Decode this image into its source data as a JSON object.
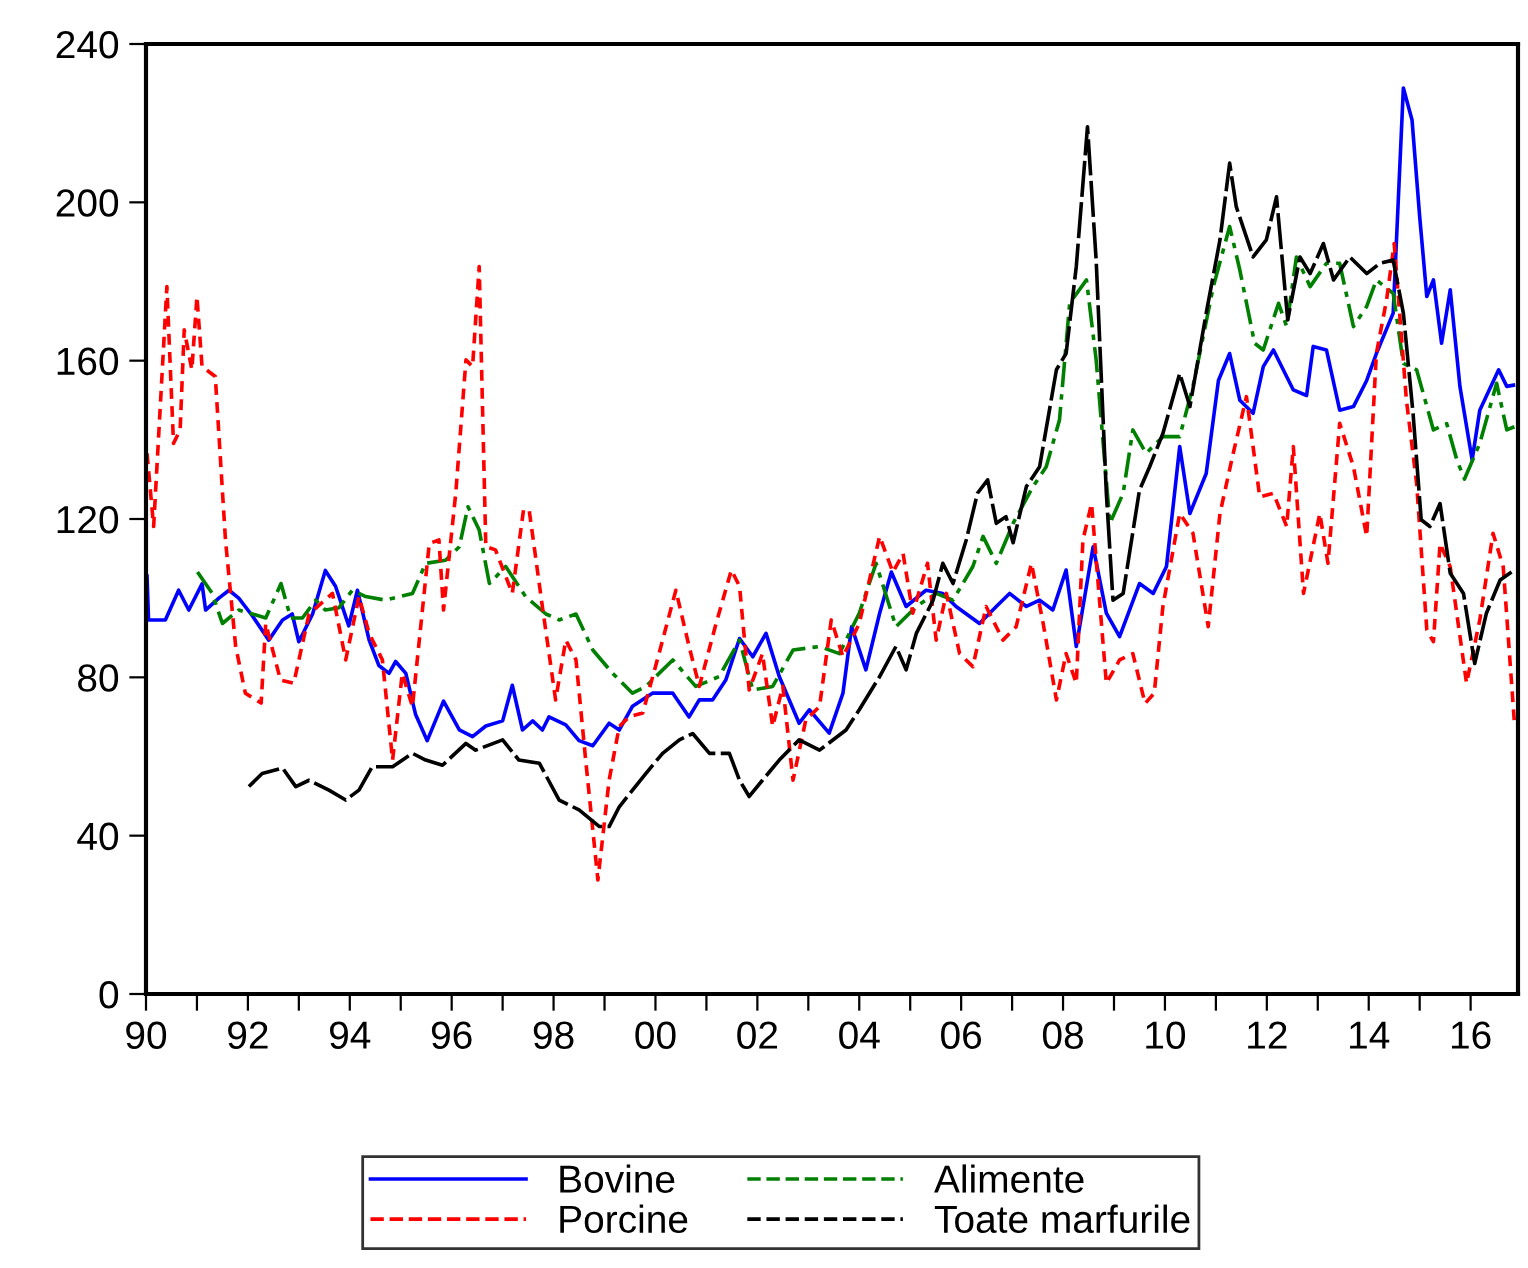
{
  "chart_data": {
    "type": "line",
    "xlim": [
      1990,
      2016.93
    ],
    "ylim": [
      0,
      240
    ],
    "xticks": [
      {
        "value": 1990,
        "label": "90"
      },
      {
        "value": 1991,
        "label": null
      },
      {
        "value": 1992,
        "label": "92"
      },
      {
        "value": 1993,
        "label": null
      },
      {
        "value": 1994,
        "label": "94"
      },
      {
        "value": 1995,
        "label": null
      },
      {
        "value": 1996,
        "label": "96"
      },
      {
        "value": 1997,
        "label": null
      },
      {
        "value": 1998,
        "label": "98"
      },
      {
        "value": 1999,
        "label": null
      },
      {
        "value": 2000,
        "label": "00"
      },
      {
        "value": 2001,
        "label": null
      },
      {
        "value": 2002,
        "label": "02"
      },
      {
        "value": 2003,
        "label": null
      },
      {
        "value": 2004,
        "label": "04"
      },
      {
        "value": 2005,
        "label": null
      },
      {
        "value": 2006,
        "label": "06"
      },
      {
        "value": 2007,
        "label": null
      },
      {
        "value": 2008,
        "label": "08"
      },
      {
        "value": 2009,
        "label": null
      },
      {
        "value": 2010,
        "label": "10"
      },
      {
        "value": 2011,
        "label": null
      },
      {
        "value": 2012,
        "label": "12"
      },
      {
        "value": 2013,
        "label": null
      },
      {
        "value": 2014,
        "label": "14"
      },
      {
        "value": 2015,
        "label": null
      },
      {
        "value": 2016,
        "label": "16"
      }
    ],
    "yticks": [
      0,
      40,
      80,
      120,
      160,
      200,
      240
    ],
    "grid": false,
    "legend": "bottom",
    "marker": "none",
    "series": [
      {
        "name": "Bovine",
        "color": "#0000ff",
        "line_style": "solid",
        "x": [
          1990.02,
          1990.05,
          1990.38,
          1990.64,
          1990.84,
          1991.1,
          1991.17,
          1991.43,
          1991.63,
          1991.82,
          1992.09,
          1992.41,
          1992.68,
          1992.87,
          1993.0,
          1993.27,
          1993.52,
          1993.72,
          1993.98,
          1994.15,
          1994.38,
          1994.57,
          1994.77,
          1994.9,
          1995.1,
          1995.29,
          1995.52,
          1995.84,
          1996.15,
          1996.41,
          1996.67,
          1997.0,
          1997.19,
          1997.39,
          1997.59,
          1997.78,
          1997.91,
          1998.24,
          1998.5,
          1998.77,
          1999.09,
          1999.29,
          1999.55,
          1999.94,
          2000.34,
          2000.66,
          2000.86,
          2001.12,
          2001.38,
          2001.65,
          2001.91,
          2002.17,
          2002.43,
          2002.82,
          2003.02,
          2003.41,
          2003.68,
          2003.85,
          2004.13,
          2004.4,
          2004.63,
          2004.92,
          2005.31,
          2005.64,
          2005.9,
          2006.36,
          2006.69,
          2006.95,
          2007.28,
          2007.54,
          2007.8,
          2008.06,
          2008.26,
          2008.59,
          2008.85,
          2009.11,
          2009.5,
          2009.77,
          2010.03,
          2010.29,
          2010.49,
          2010.81,
          2011.05,
          2011.27,
          2011.47,
          2011.73,
          2011.93,
          2012.13,
          2012.52,
          2012.78,
          2012.91,
          2013.17,
          2013.43,
          2013.7,
          2013.96,
          2014.15,
          2014.48,
          2014.68,
          2014.85,
          2015.0,
          2015.14,
          2015.27,
          2015.43,
          2015.6,
          2015.79,
          2016.03,
          2016.18,
          2016.55,
          2016.71,
          2016.84
        ],
        "values": [
          105.6,
          94.5,
          94.5,
          102,
          97,
          103.6,
          97,
          100,
          102,
          100,
          95.5,
          89.4,
          94.5,
          96,
          89,
          96,
          107,
          103,
          93,
          102,
          89.4,
          83,
          81,
          84,
          81,
          70.7,
          64,
          74,
          66.7,
          65,
          67.7,
          69,
          78,
          66.7,
          69,
          66.7,
          70,
          68,
          64,
          62.7,
          68.4,
          66.7,
          72.7,
          76,
          76,
          70,
          74.3,
          74.3,
          79.3,
          89.8,
          85.2,
          91.1,
          80.2,
          68.4,
          71.8,
          65.9,
          76,
          92.8,
          81.9,
          96.2,
          106.6,
          97.9,
          102,
          101.2,
          97.9,
          93.6,
          97.9,
          101.2,
          97.9,
          99.5,
          97,
          107.1,
          87.8,
          113,
          96.2,
          90.3,
          103.7,
          101.2,
          108,
          138.3,
          121.4,
          131.5,
          155,
          161.8,
          150,
          146.7,
          158.5,
          162.7,
          152.6,
          151.2,
          163.6,
          162.7,
          147.5,
          148.4,
          155,
          161.8,
          172,
          228.9,
          220.8,
          196.4,
          176.2,
          180.4,
          164.4,
          177.9,
          153.5,
          134.9,
          147.5,
          157.7,
          153.5,
          153.8
        ]
      },
      {
        "name": "Alimente",
        "color": "#008000",
        "line_style": "dashdot",
        "x": [
          1991.01,
          1991.3,
          1991.5,
          1991.82,
          1992.09,
          1992.35,
          1992.65,
          1992.84,
          1993.07,
          1993.33,
          1993.52,
          1993.79,
          1994.05,
          1994.31,
          1994.7,
          1995.23,
          1995.49,
          1995.88,
          1996.15,
          1996.32,
          1996.54,
          1996.74,
          1997.06,
          1997.45,
          1997.85,
          1998.11,
          1998.44,
          1998.77,
          1999.16,
          1999.55,
          1999.81,
          2000.34,
          2000.79,
          2001.25,
          2001.65,
          2001.91,
          2002.3,
          2002.7,
          2003.22,
          2003.61,
          2004.0,
          2004.33,
          2004.72,
          2005.12,
          2005.51,
          2005.84,
          2006.23,
          2006.43,
          2006.69,
          2007.02,
          2007.41,
          2007.67,
          2007.93,
          2008.13,
          2008.46,
          2008.65,
          2008.92,
          2009.18,
          2009.37,
          2009.63,
          2009.96,
          2010.29,
          2010.55,
          2010.95,
          2011.27,
          2011.47,
          2011.76,
          2011.93,
          2012.23,
          2012.39,
          2012.58,
          2012.85,
          2013.17,
          2013.43,
          2013.7,
          2013.96,
          2014.15,
          2014.48,
          2014.68,
          2014.94,
          2015.27,
          2015.53,
          2015.73,
          2015.88,
          2016.18,
          2016.51,
          2016.71,
          2016.86
        ],
        "values": [
          106.6,
          101.2,
          93.6,
          97,
          96,
          95,
          103.7,
          95,
          95,
          99.5,
          97,
          97.6,
          102,
          100.4,
          99.5,
          101.2,
          108.8,
          109.6,
          113,
          123.1,
          117.2,
          103.7,
          108,
          100.4,
          96,
          94.5,
          96,
          86.9,
          81,
          76,
          77.7,
          84.4,
          77.7,
          80.2,
          89.4,
          76.8,
          77.7,
          86.9,
          87.8,
          86,
          96.2,
          108.8,
          92.8,
          97.9,
          101.2,
          99.5,
          108,
          115.6,
          108.8,
          118.9,
          128.2,
          133.2,
          145,
          174.5,
          180.4,
          160.2,
          118.9,
          126.5,
          142.5,
          136.6,
          140.8,
          140.8,
          153.5,
          178.7,
          193.9,
          182.9,
          164.4,
          162.7,
          174.5,
          168.6,
          186.2,
          178.7,
          184.6,
          184.6,
          168.6,
          173.7,
          180.4,
          177,
          159.3,
          157.7,
          142.5,
          144.1,
          134.9,
          130.1,
          139.1,
          154.3,
          142.5,
          143.3
        ]
      },
      {
        "name": "Porcine",
        "color": "#ff0000",
        "line_style": "dashed",
        "x": [
          1990.02,
          1990.15,
          1990.41,
          1990.54,
          1990.67,
          1990.75,
          1990.9,
          1991.0,
          1991.1,
          1991.36,
          1991.56,
          1991.76,
          1991.95,
          1992.26,
          1992.35,
          1992.64,
          1992.9,
          1993.2,
          1993.66,
          1993.92,
          1994.18,
          1994.38,
          1994.64,
          1994.84,
          1995.03,
          1995.23,
          1995.56,
          1995.75,
          1995.84,
          1996.08,
          1996.28,
          1996.41,
          1996.54,
          1996.67,
          1996.86,
          1997.19,
          1997.41,
          1997.52,
          1997.78,
          1998.04,
          1998.24,
          1998.44,
          1998.63,
          1998.87,
          1999.09,
          1999.29,
          1999.48,
          1999.75,
          2000.07,
          2000.4,
          2000.66,
          2000.86,
          2001.19,
          2001.49,
          2001.65,
          2001.84,
          2002.1,
          2002.3,
          2002.5,
          2002.7,
          2002.95,
          2003.22,
          2003.45,
          2003.68,
          2004.0,
          2004.4,
          2004.66,
          2004.86,
          2005.05,
          2005.34,
          2005.51,
          2005.71,
          2005.97,
          2006.23,
          2006.49,
          2006.82,
          2007.08,
          2007.38,
          2007.61,
          2007.87,
          2008.06,
          2008.26,
          2008.39,
          2008.56,
          2008.85,
          2009.11,
          2009.37,
          2009.61,
          2009.79,
          2009.96,
          2010.29,
          2010.55,
          2010.85,
          2011.08,
          2011.34,
          2011.6,
          2011.86,
          2012.13,
          2012.39,
          2012.52,
          2012.72,
          2013.04,
          2013.2,
          2013.43,
          2013.7,
          2013.96,
          2014.15,
          2014.35,
          2014.5,
          2014.74,
          2014.94,
          2015.14,
          2015.27,
          2015.4,
          2015.6,
          2015.92,
          2016.18,
          2016.44,
          2016.64,
          2016.86
        ],
        "values": [
          136.6,
          118.1,
          178.7,
          139.1,
          142.5,
          167.8,
          157.7,
          176.2,
          158.5,
          156,
          114.7,
          87.8,
          76,
          73.5,
          93.6,
          79.3,
          78.5,
          96,
          101.2,
          84.4,
          100.4,
          91.1,
          84.4,
          59.1,
          81,
          72.6,
          113.8,
          114.7,
          97,
          126.5,
          160.2,
          158.5,
          183.8,
          113,
          112.2,
          101.2,
          122.3,
          122.3,
          97.9,
          74.3,
          89.4,
          84.4,
          59.1,
          28.8,
          54,
          67.6,
          70,
          71,
          86,
          102,
          87.8,
          77.7,
          93.6,
          107.1,
          103,
          76.8,
          86,
          67.6,
          77.7,
          54,
          69.2,
          72.6,
          94.5,
          85.2,
          93.6,
          115.6,
          106.6,
          111.3,
          96.2,
          108.8,
          89.4,
          101.2,
          86,
          82.7,
          97.9,
          89.4,
          92.8,
          108.8,
          93.6,
          74.3,
          86,
          78.5,
          114.7,
          123.9,
          78.5,
          84.4,
          86,
          73.4,
          76,
          97.9,
          121.4,
          116.4,
          92.8,
          121.4,
          136.6,
          150.9,
          125.6,
          126.5,
          118.1,
          138.3,
          101.2,
          121.4,
          108.8,
          144.2,
          133.2,
          115.6,
          161.8,
          175.3,
          189.6,
          150,
          129,
          92,
          89,
          113.8,
          107.9,
          78.5,
          94.5,
          116.4,
          107.9,
          68.4
        ]
      },
      {
        "name": "Toate marfurile",
        "color": "#000000",
        "line_style": "longdash",
        "x": [
          1992.02,
          1992.28,
          1992.68,
          1992.94,
          1993.2,
          1993.59,
          1993.92,
          1994.18,
          1994.44,
          1994.84,
          1995.23,
          1995.49,
          1995.82,
          1996.28,
          1996.47,
          1997.0,
          1997.32,
          1997.72,
          1998.11,
          1998.5,
          1998.9,
          1999.09,
          1999.29,
          1999.81,
          2000.14,
          2000.47,
          2000.73,
          2001.06,
          2001.45,
          2001.65,
          2001.84,
          2002.1,
          2002.43,
          2002.82,
          2003.22,
          2003.74,
          2004.0,
          2004.4,
          2004.72,
          2004.92,
          2005.12,
          2005.45,
          2005.64,
          2005.84,
          2006.1,
          2006.32,
          2006.52,
          2006.69,
          2006.88,
          2007.02,
          2007.28,
          2007.54,
          2007.87,
          2008.06,
          2008.26,
          2008.48,
          2008.65,
          2008.85,
          2008.98,
          2009.18,
          2009.5,
          2009.7,
          2009.96,
          2010.29,
          2010.49,
          2010.81,
          2011.08,
          2011.27,
          2011.4,
          2011.73,
          2011.99,
          2012.19,
          2012.41,
          2012.65,
          2012.85,
          2013.11,
          2013.31,
          2013.63,
          2013.96,
          2014.22,
          2014.48,
          2014.68,
          2014.87,
          2015.03,
          2015.2,
          2015.4,
          2015.6,
          2015.86,
          2016.08,
          2016.31,
          2016.58,
          2016.86
        ],
        "values": [
          52.4,
          55.7,
          57.1,
          52.4,
          54,
          51.5,
          49,
          51.5,
          57.4,
          57.4,
          60.8,
          59.1,
          57.8,
          63.3,
          61.6,
          64.2,
          59.1,
          58.3,
          49,
          46.5,
          42.3,
          42.3,
          47.3,
          55.7,
          60.8,
          64.2,
          65.8,
          60.8,
          60.8,
          54,
          49.9,
          54,
          59.1,
          64.2,
          61.6,
          66.7,
          71.8,
          80.2,
          87.8,
          81.9,
          91.1,
          99.5,
          108.8,
          103.7,
          114.7,
          126.5,
          129.9,
          118.9,
          120.6,
          114,
          128.2,
          133.2,
          157.7,
          161.8,
          183.8,
          219.1,
          185.4,
          126.5,
          99.5,
          101.2,
          127.3,
          133.2,
          141.6,
          156.8,
          148.4,
          172,
          190.5,
          209.9,
          198.9,
          186.2,
          190.5,
          201.4,
          170.3,
          186.2,
          182,
          189.6,
          180.4,
          186.2,
          182,
          184.6,
          185.4,
          172,
          146.7,
          119.8,
          118.1,
          123.9,
          106.3,
          101.2,
          83.5,
          96.2,
          104.6,
          107.1
        ]
      }
    ]
  }
}
